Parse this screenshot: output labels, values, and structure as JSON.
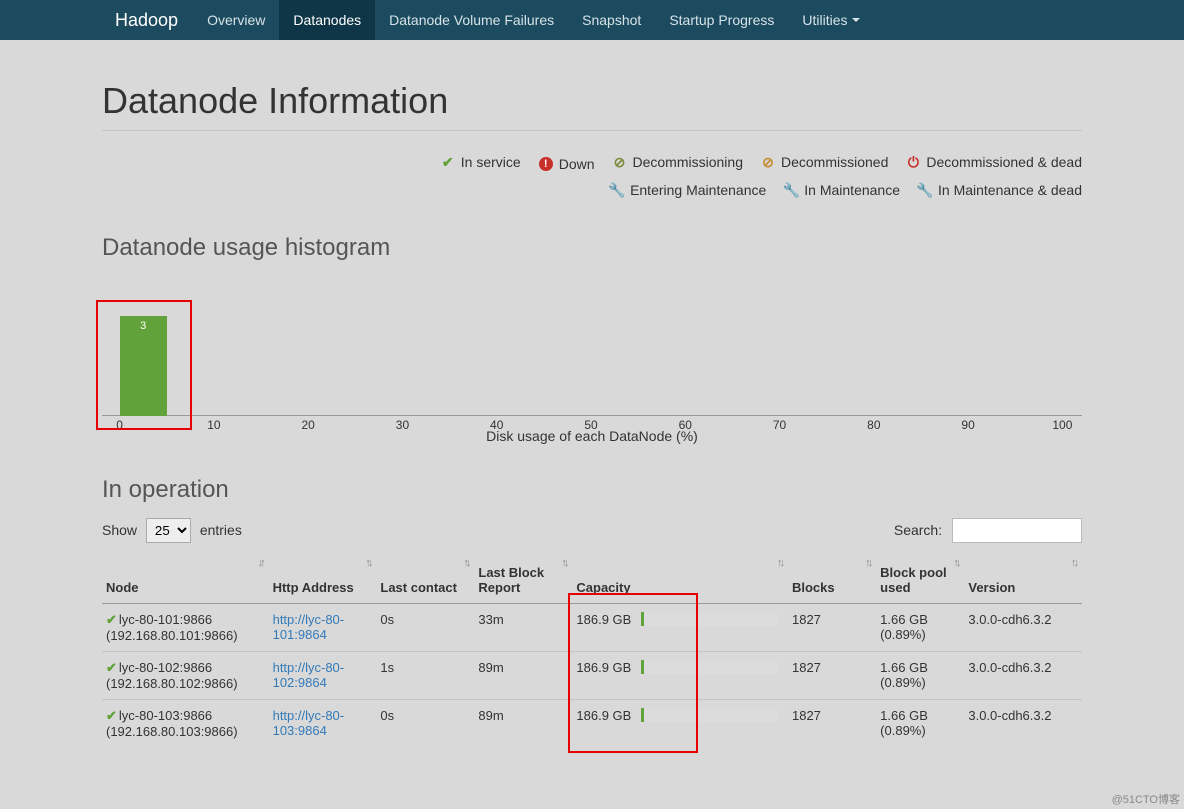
{
  "nav": {
    "brand": "Hadoop",
    "items": [
      {
        "label": "Overview"
      },
      {
        "label": "Datanodes",
        "active": true
      },
      {
        "label": "Datanode Volume Failures"
      },
      {
        "label": "Snapshot"
      },
      {
        "label": "Startup Progress"
      },
      {
        "label": "Utilities",
        "dropdown": true
      }
    ]
  },
  "page": {
    "title": "Datanode Information"
  },
  "legend": [
    {
      "icon": "✔",
      "color": "#61a33a",
      "label": "In service"
    },
    {
      "icon": "!",
      "circle": true,
      "color": "#c9302c",
      "label": "Down"
    },
    {
      "icon": "⊘",
      "color": "#7b8a3b",
      "label": "Decommissioning"
    },
    {
      "icon": "⊘",
      "color": "#c48a2f",
      "label": "Decommissioned"
    },
    {
      "icon": "⏻",
      "color": "#c9302c",
      "label": "Decommissioned & dead"
    },
    {
      "icon": "🔧",
      "color": "#61a33a",
      "label": "Entering Maintenance"
    },
    {
      "icon": "🔧",
      "color": "#c48a2f",
      "label": "In Maintenance"
    },
    {
      "icon": "🔧",
      "color": "#c9302c",
      "label": "In Maintenance & dead"
    }
  ],
  "histogram": {
    "title": "Datanode usage histogram",
    "xlabel": "Disk usage of each DataNode (%)",
    "ticks": [
      0,
      10,
      20,
      30,
      40,
      50,
      60,
      70,
      80,
      90,
      100
    ],
    "bar": {
      "binStart": 0,
      "binEnd": 5,
      "count": 3,
      "color": "#61a33a"
    },
    "highlight_color": "#e60000"
  },
  "in_operation": {
    "title": "In operation",
    "show_label": "Show",
    "entries_label": "entries",
    "page_size": "25",
    "search_label": "Search:",
    "columns": [
      "Node",
      "Http Address",
      "Last contact",
      "Last Block Report",
      "Capacity",
      "Blocks",
      "Block pool used",
      "Version"
    ],
    "rows": [
      {
        "node": "lyc-80-101:9866",
        "node_ip": "(192.168.80.101:9866)",
        "http": "http://lyc-80-101:9864",
        "last_contact": "0s",
        "last_block_report": "33m",
        "capacity": "186.9 GB",
        "capacity_fill_pct": 2,
        "blocks": "1827",
        "bp_used": "1.66 GB",
        "bp_pct": "(0.89%)",
        "version": "3.0.0-cdh6.3.2"
      },
      {
        "node": "lyc-80-102:9866",
        "node_ip": "(192.168.80.102:9866)",
        "http": "http://lyc-80-102:9864",
        "last_contact": "1s",
        "last_block_report": "89m",
        "capacity": "186.9 GB",
        "capacity_fill_pct": 2,
        "blocks": "1827",
        "bp_used": "1.66 GB",
        "bp_pct": "(0.89%)",
        "version": "3.0.0-cdh6.3.2"
      },
      {
        "node": "lyc-80-103:9866",
        "node_ip": "(192.168.80.103:9866)",
        "http": "http://lyc-80-103:9864",
        "last_contact": "0s",
        "last_block_report": "89m",
        "capacity": "186.9 GB",
        "capacity_fill_pct": 2,
        "blocks": "1827",
        "bp_used": "1.66 GB",
        "bp_pct": "(0.89%)",
        "version": "3.0.0-cdh6.3.2"
      }
    ],
    "highlight_color": "#e60000"
  },
  "watermark": "@51CTO博客"
}
